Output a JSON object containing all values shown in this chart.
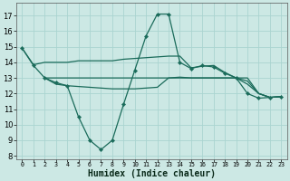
{
  "x": [
    0,
    1,
    2,
    3,
    4,
    5,
    6,
    7,
    8,
    9,
    10,
    11,
    12,
    13,
    14,
    15,
    16,
    17,
    18,
    19,
    20,
    21,
    22,
    23
  ],
  "main_curve": [
    14.9,
    13.8,
    13.0,
    12.7,
    12.5,
    10.5,
    9.0,
    8.4,
    9.0,
    11.3,
    13.5,
    15.7,
    17.1,
    17.1,
    14.0,
    13.6,
    13.8,
    13.7,
    13.3,
    13.0,
    12.0,
    11.7,
    11.75,
    11.8
  ],
  "band_top": [
    14.9,
    13.85,
    14.0,
    14.0,
    14.0,
    14.1,
    14.1,
    14.1,
    14.1,
    14.2,
    14.25,
    14.3,
    14.35,
    14.4,
    14.4,
    13.65,
    13.75,
    13.8,
    13.35,
    13.0,
    13.0,
    12.0,
    11.75,
    11.8
  ],
  "band_mid": [
    null,
    null,
    13.0,
    12.6,
    12.5,
    12.45,
    12.4,
    12.35,
    12.3,
    12.3,
    12.3,
    12.35,
    12.4,
    13.0,
    13.05,
    13.0,
    13.0,
    13.0,
    13.0,
    13.0,
    12.6,
    12.0,
    11.75,
    11.8
  ],
  "band_bot": [
    null,
    null,
    13.0,
    13.0,
    13.0,
    13.0,
    13.0,
    13.0,
    13.0,
    13.0,
    13.0,
    13.0,
    13.0,
    13.0,
    13.0,
    13.0,
    13.0,
    13.0,
    13.0,
    13.0,
    12.8,
    12.0,
    11.75,
    11.8
  ],
  "bg_color": "#cce8e4",
  "line_color": "#1a6b5a",
  "grid_color": "#aad4d0",
  "xlabel": "Humidex (Indice chaleur)",
  "ylabel_ticks": [
    8,
    9,
    10,
    11,
    12,
    13,
    14,
    15,
    16,
    17
  ],
  "xlim": [
    -0.5,
    23.5
  ],
  "ylim": [
    7.8,
    17.8
  ],
  "xtick_labels": [
    "0",
    "1",
    "2",
    "3",
    "4",
    "5",
    "6",
    "7",
    "8",
    "9",
    "10",
    "11",
    "12",
    "13",
    "14",
    "15",
    "16",
    "17",
    "18",
    "19",
    "20",
    "21",
    "22",
    "23"
  ]
}
